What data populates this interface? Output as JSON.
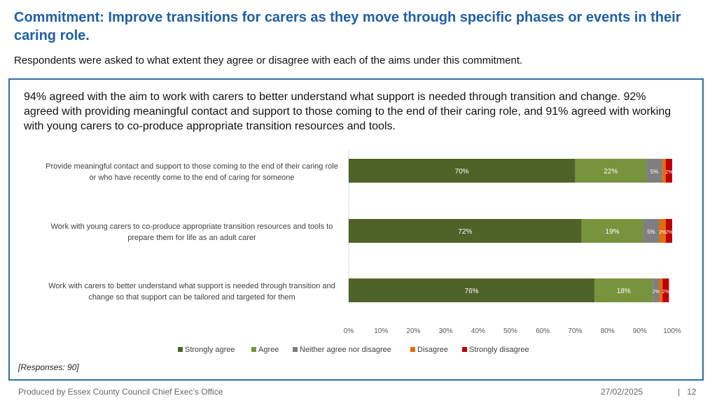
{
  "header": {
    "title": "Commitment: Improve transitions for carers as they move through specific phases or events in their caring role.",
    "subtitle": "Respondents were asked to what extent they agree or disagree with each of the aims under this commitment."
  },
  "summary": "94% agreed with the aim to work with carers to better understand what support is needed through transition and change. 92% agreed with providing meaningful contact and support to those coming to the end of their caring role, and 91% agreed with working with young carers to co-produce appropriate transition resources and tools.",
  "responses_note": "[Responses: 90]",
  "footer": {
    "producer": "Produced by Essex County Council Chief Exec’s Office",
    "date": "27/02/2025",
    "separator": "|",
    "page": "12"
  },
  "chart_data": {
    "type": "bar",
    "orientation": "horizontal",
    "stacked": true,
    "categories": [
      [
        "Provide meaningful contact and support to those coming to the end of their caring role",
        "or who have recently come to the end of caring for someone"
      ],
      [
        "Work with young carers to co-produce appropriate transition resources and tools to",
        "prepare them for life as an adult carer"
      ],
      [
        "Work with carers to better understand what support is needed through transition and",
        "change so that support can be tailored and targeted for them"
      ]
    ],
    "series": [
      {
        "name": "Strongly agree",
        "color": "#4f6228",
        "values": [
          70,
          72,
          76
        ],
        "labels": [
          "70%",
          "72%",
          "76%"
        ]
      },
      {
        "name": "Agree",
        "color": "#77933c",
        "values": [
          22,
          19,
          18
        ],
        "labels": [
          "22%",
          "19%",
          "18%"
        ]
      },
      {
        "name": "Neither agree nor disagree",
        "color": "#7f7f7f",
        "values": [
          5,
          5,
          2
        ],
        "labels": [
          "5%",
          "5%",
          "2%"
        ]
      },
      {
        "name": "Disagree",
        "color": "#e46c0a",
        "values": [
          1,
          2,
          1
        ],
        "labels": [
          "",
          "2%",
          ""
        ]
      },
      {
        "name": "Strongly disagree",
        "color": "#c00000",
        "values": [
          2,
          2,
          2
        ],
        "labels": [
          "2%",
          "2%",
          "2%"
        ]
      }
    ],
    "xlim": [
      0,
      100
    ],
    "xticks": [
      "0%",
      "10%",
      "20%",
      "30%",
      "40%",
      "50%",
      "60%",
      "70%",
      "80%",
      "90%",
      "100%"
    ],
    "legend_position": "bottom",
    "grid": false
  }
}
